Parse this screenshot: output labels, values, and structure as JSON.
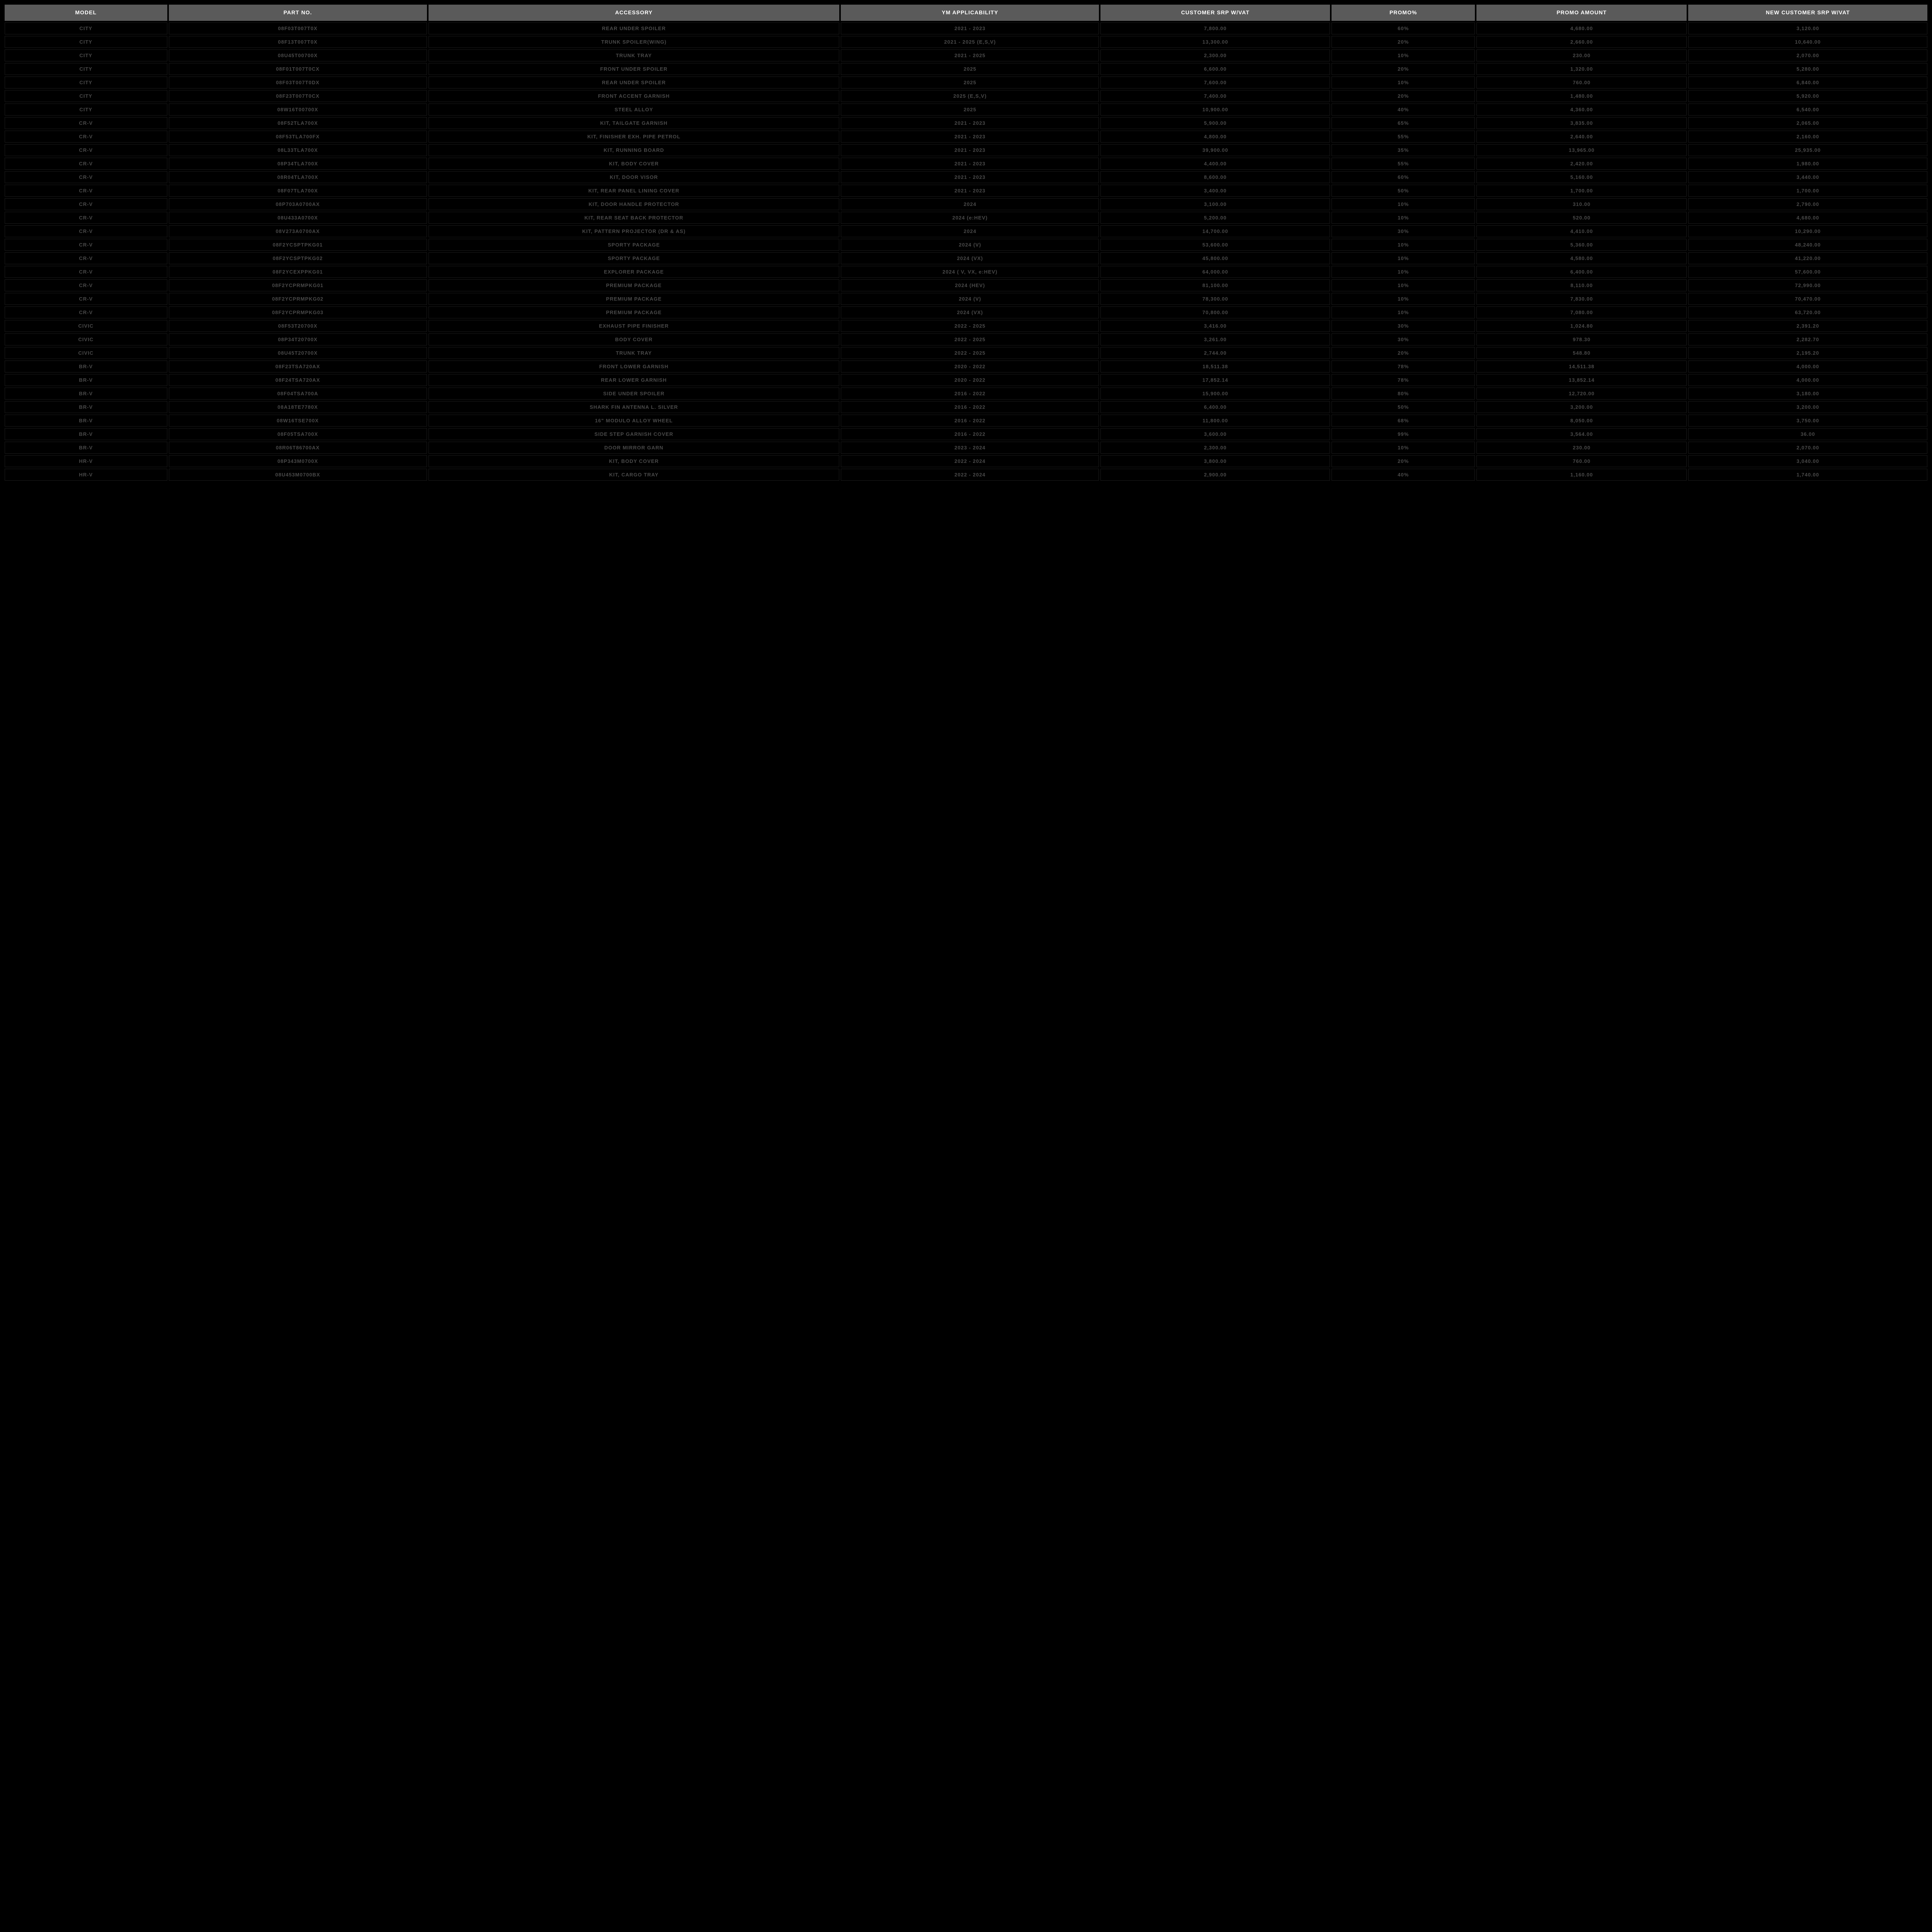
{
  "table": {
    "background_color": "#000000",
    "header_bg": "#5a5a5a",
    "header_fg": "#ffffff",
    "cell_bg": "#000000",
    "cell_fg": "#4a4a4a",
    "cell_border": "#1c1c1c",
    "font_family": "Arial, Helvetica, sans-serif",
    "header_fontsize": 14,
    "cell_fontsize": 13,
    "columns": [
      {
        "key": "model",
        "label": "MODEL",
        "width_pct": 8.5
      },
      {
        "key": "part_no",
        "label": "PART NO.",
        "width_pct": 13.5
      },
      {
        "key": "accessory",
        "label": "ACCESSORY",
        "width_pct": 21.5
      },
      {
        "key": "ym",
        "label": "YM APPLICABILITY",
        "width_pct": 13.5
      },
      {
        "key": "srp",
        "label": "CUSTOMER SRP W/VAT",
        "width_pct": 12
      },
      {
        "key": "promo_pct",
        "label": "PROMO%",
        "width_pct": 7.5
      },
      {
        "key": "promo_amt",
        "label": "PROMO AMOUNT",
        "width_pct": 11
      },
      {
        "key": "new_srp",
        "label": "NEW CUSTOMER SRP W/VAT",
        "width_pct": 12.5
      }
    ],
    "rows": [
      [
        "CITY",
        "08F03T007T0X",
        "REAR UNDER SPOILER",
        "2021 - 2023",
        "7,800.00",
        "60%",
        "4,680.00",
        "3,120.00"
      ],
      [
        "CITY",
        "08F13T007T0X",
        "TRUNK SPOILER(WING)",
        "2021 - 2025 (E,S,V)",
        "13,300.00",
        "20%",
        "2,660.00",
        "10,640.00"
      ],
      [
        "CITY",
        "08U45T00700X",
        "TRUNK TRAY",
        "2021 - 2025",
        "2,300.00",
        "10%",
        "230.00",
        "2,070.00"
      ],
      [
        "CITY",
        "08F01T007T0CX",
        "FRONT UNDER SPOILER",
        "2025",
        "6,600.00",
        "20%",
        "1,320.00",
        "5,280.00"
      ],
      [
        "CITY",
        "08F03T007T0DX",
        "REAR UNDER SPOILER",
        "2025",
        "7,600.00",
        "10%",
        "760.00",
        "6,840.00"
      ],
      [
        "CITY",
        "08F23T007T0CX",
        "FRONT ACCENT GARNISH",
        "2025 (E,S,V)",
        "7,400.00",
        "20%",
        "1,480.00",
        "5,920.00"
      ],
      [
        "CITY",
        "08W16T00700X",
        "STEEL ALLOY",
        "2025",
        "10,900.00",
        "40%",
        "4,360.00",
        "6,540.00"
      ],
      [
        "CR-V",
        "08F52TLA700X",
        "KIT, TAILGATE GARNISH",
        "2021 - 2023",
        "5,900.00",
        "65%",
        "3,835.00",
        "2,065.00"
      ],
      [
        "CR-V",
        "08F53TLA700FX",
        "KIT, FINISHER EXH. PIPE PETROL",
        "2021 - 2023",
        "4,800.00",
        "55%",
        "2,640.00",
        "2,160.00"
      ],
      [
        "CR-V",
        "08L33TLA700X",
        "KIT, RUNNING BOARD",
        "2021 - 2023",
        "39,900.00",
        "35%",
        "13,965.00",
        "25,935.00"
      ],
      [
        "CR-V",
        "08P34TLA700X",
        "KIT, BODY COVER",
        "2021 - 2023",
        "4,400.00",
        "55%",
        "2,420.00",
        "1,980.00"
      ],
      [
        "CR-V",
        "08R04TLA700X",
        "KIT, DOOR VISOR",
        "2021 - 2023",
        "8,600.00",
        "60%",
        "5,160.00",
        "3,440.00"
      ],
      [
        "CR-V",
        "08F07TLA700X",
        "KIT, REAR PANEL LINING COVER",
        "2021 - 2023",
        "3,400.00",
        "50%",
        "1,700.00",
        "1,700.00"
      ],
      [
        "CR-V",
        "08P703A0700AX",
        "KIT, DOOR HANDLE PROTECTOR",
        "2024",
        "3,100.00",
        "10%",
        "310.00",
        "2,790.00"
      ],
      [
        "CR-V",
        "08U433A0700X",
        "KIT, REAR SEAT BACK PROTECTOR",
        "2024 (e:HEV)",
        "5,200.00",
        "10%",
        "520.00",
        "4,680.00"
      ],
      [
        "CR-V",
        "08V273A0700AX",
        "KIT, PATTERN PROJECTOR (DR & AS)",
        "2024",
        "14,700.00",
        "30%",
        "4,410.00",
        "10,290.00"
      ],
      [
        "CR-V",
        "08F2YCSPTPKG01",
        "SPORTY PACKAGE",
        "2024 (V)",
        "53,600.00",
        "10%",
        "5,360.00",
        "48,240.00"
      ],
      [
        "CR-V",
        "08F2YCSPTPKG02",
        "SPORTY PACKAGE",
        "2024 (VX)",
        "45,800.00",
        "10%",
        "4,580.00",
        "41,220.00"
      ],
      [
        "CR-V",
        "08F2YCEXPPKG01",
        "EXPLORER PACKAGE",
        "2024 ( V, VX, e:HEV)",
        "64,000.00",
        "10%",
        "6,400.00",
        "57,600.00"
      ],
      [
        "CR-V",
        "08F2YCPRMPKG01",
        "PREMIUM PACKAGE",
        "2024 (HEV)",
        "81,100.00",
        "10%",
        "8,110.00",
        "72,990.00"
      ],
      [
        "CR-V",
        "08F2YCPRMPKG02",
        "PREMIUM PACKAGE",
        "2024 (V)",
        "78,300.00",
        "10%",
        "7,830.00",
        "70,470.00"
      ],
      [
        "CR-V",
        "08F2YCPRMPKG03",
        "PREMIUM PACKAGE",
        "2024 (VX)",
        "70,800.00",
        "10%",
        "7,080.00",
        "63,720.00"
      ],
      [
        "CIVIC",
        "08F53T20700X",
        "EXHAUST PIPE FINISHER",
        "2022 - 2025",
        "3,416.00",
        "30%",
        "1,024.80",
        "2,391.20"
      ],
      [
        "CIVIC",
        "08P34T20700X",
        "BODY COVER",
        "2022 - 2025",
        "3,261.00",
        "30%",
        "978.30",
        "2,282.70"
      ],
      [
        "CIVIC",
        "08U45T20700X",
        "TRUNK TRAY",
        "2022 - 2025",
        "2,744.00",
        "20%",
        "548.80",
        "2,195.20"
      ],
      [
        "BR-V",
        "08F23TSA720AX",
        "FRONT LOWER GARNISH",
        "2020 - 2022",
        "18,511.38",
        "78%",
        "14,511.38",
        "4,000.00"
      ],
      [
        "BR-V",
        "08F24TSA720AX",
        "REAR LOWER GARNISH",
        "2020 - 2022",
        "17,852.14",
        "78%",
        "13,852.14",
        "4,000.00"
      ],
      [
        "BR-V",
        "08F04TSA700A",
        "SIDE UNDER SPOILER",
        "2016 - 2022",
        "15,900.00",
        "80%",
        "12,720.00",
        "3,180.00"
      ],
      [
        "BR-V",
        "08A18TE7780X",
        "SHARK FIN ANTENNA L. SILVER",
        "2016 - 2022",
        "6,400.00",
        "50%",
        "3,200.00",
        "3,200.00"
      ],
      [
        "BR-V",
        "08W16TSE700X",
        "16\" MODULO ALLOY WHEEL",
        "2016 - 2022",
        "11,800.00",
        "68%",
        "8,050.00",
        "3,750.00"
      ],
      [
        "BR-V",
        "08F05TSA700X",
        "SIDE STEP GARNISH COVER",
        "2016 - 2022",
        "3,600.00",
        "99%",
        "3,564.00",
        "36.00"
      ],
      [
        "BR-V",
        "08R06T86700AX",
        "DOOR MIRROR GARN",
        "2023 - 2024",
        "2,300.00",
        "10%",
        "230.00",
        "2,070.00"
      ],
      [
        "HR-V",
        "08P343M0700X",
        "KIT, BODY COVER",
        "2022 - 2024",
        "3,800.00",
        "20%",
        "760.00",
        "3,040.00"
      ],
      [
        "HR-V",
        "08U453M0700BX",
        "KIT, CARGO TRAY",
        "2022 - 2024",
        "2,900.00",
        "40%",
        "1,160.00",
        "1,740.00"
      ]
    ]
  }
}
